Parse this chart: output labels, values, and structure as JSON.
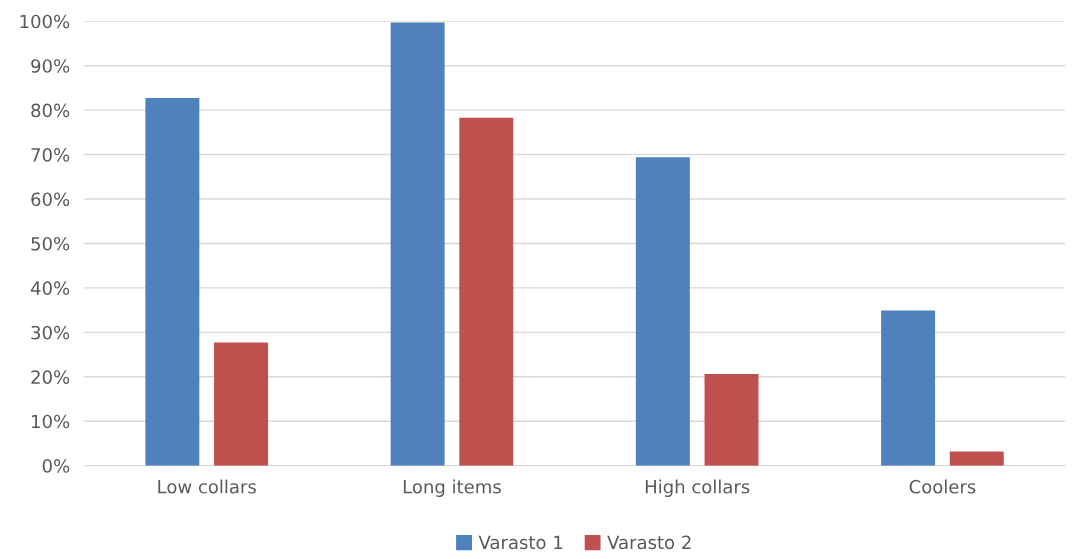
{
  "chart_data": {
    "type": "bar",
    "categories": [
      "Low collars",
      "Long items",
      "High collars",
      "Coolers"
    ],
    "series": [
      {
        "name": "Varasto 1",
        "color": "#4f81bd",
        "values": [
          82.7,
          99.7,
          69.4,
          34.9
        ]
      },
      {
        "name": "Varasto 2",
        "color": "#c0504d",
        "values": [
          27.7,
          78.3,
          20.6,
          3.2
        ]
      }
    ],
    "ylim": [
      0,
      100
    ],
    "yticks": [
      {
        "value": 0,
        "label": "0%"
      },
      {
        "value": 10,
        "label": "10%"
      },
      {
        "value": 20,
        "label": "20%"
      },
      {
        "value": 30,
        "label": "30%"
      },
      {
        "value": 40,
        "label": "40%"
      },
      {
        "value": 50,
        "label": "50%"
      },
      {
        "value": 60,
        "label": "60%"
      },
      {
        "value": 70,
        "label": "70%"
      },
      {
        "value": 80,
        "label": "80%"
      },
      {
        "value": 90,
        "label": "90%"
      },
      {
        "value": 100,
        "label": "100%"
      }
    ],
    "grid": "y",
    "legend": "bottom"
  }
}
